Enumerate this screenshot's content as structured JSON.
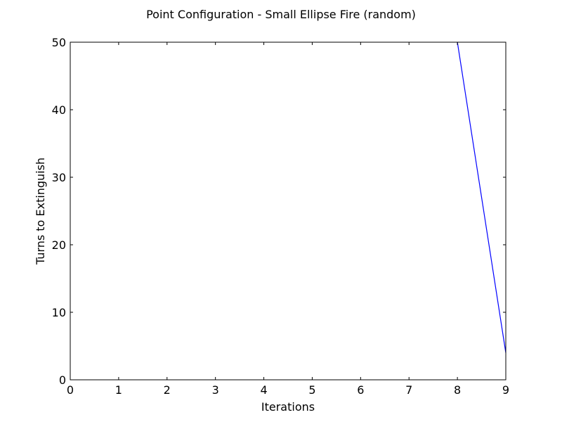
{
  "chart_data": {
    "type": "line",
    "title": "Point Configuration - Small Ellipse Fire (random)",
    "xlabel": "Iterations",
    "ylabel": "Turns to Extinguish",
    "xlim": [
      0,
      9
    ],
    "ylim": [
      0,
      50
    ],
    "xticks": [
      "0",
      "1",
      "2",
      "3",
      "4",
      "5",
      "6",
      "7",
      "8",
      "9"
    ],
    "yticks": [
      "0",
      "10",
      "20",
      "30",
      "40",
      "50"
    ],
    "grid": false,
    "series": [
      {
        "color": "#0000ff",
        "x": [
          8,
          9
        ],
        "y": [
          50,
          4
        ]
      }
    ]
  }
}
